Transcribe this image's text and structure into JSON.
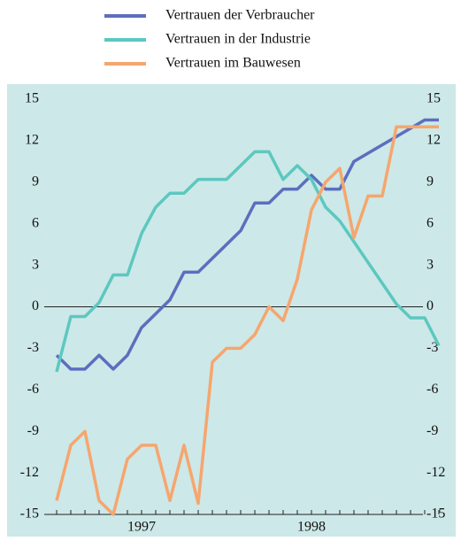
{
  "chart_data": {
    "type": "line",
    "categories": [
      null,
      null,
      null,
      null,
      null,
      null,
      "1997",
      null,
      null,
      null,
      null,
      null,
      null,
      null,
      null,
      null,
      null,
      null,
      "1998",
      null,
      null,
      null,
      null,
      null,
      null,
      null,
      null,
      null
    ],
    "series": [
      {
        "name": "Vertrauen der Verbraucher",
        "color": "#5b6fbf",
        "values": [
          -3.5,
          -4.5,
          -4.5,
          -3.5,
          -4.5,
          -3.5,
          -1.5,
          -0.5,
          0.5,
          2.5,
          2.5,
          3.5,
          4.5,
          5.5,
          7.5,
          7.5,
          8.5,
          8.5,
          9.5,
          8.5,
          8.5,
          10.5,
          11.1,
          11.7,
          12.3,
          12.9,
          13.5,
          13.5
        ]
      },
      {
        "name": "Vertrauen in der Industrie",
        "color": "#5cc8c0",
        "values": [
          -4.7,
          -0.7,
          -0.7,
          0.3,
          2.3,
          2.3,
          5.3,
          7.2,
          8.2,
          8.2,
          9.2,
          9.2,
          9.2,
          10.2,
          11.2,
          11.2,
          9.2,
          10.2,
          9.2,
          7.2,
          6.2,
          4.7,
          3.2,
          1.7,
          0.2,
          -0.8,
          -0.8,
          -2.8
        ]
      },
      {
        "name": "Vertrauen im Bauwesen",
        "color": "#f5a66e",
        "values": [
          -14,
          -10,
          -9,
          -14,
          -15,
          -11,
          -10,
          -10,
          -14,
          -10,
          -14.2,
          -4,
          -3,
          -3,
          -2,
          0,
          -1,
          2,
          7,
          9,
          10,
          5,
          8,
          8,
          13,
          13,
          13,
          13
        ]
      }
    ],
    "ylim": [
      -15,
      15
    ],
    "yticks": [
      -15,
      -12,
      -9,
      -6,
      -3,
      0,
      3,
      6,
      9,
      12,
      15
    ]
  }
}
